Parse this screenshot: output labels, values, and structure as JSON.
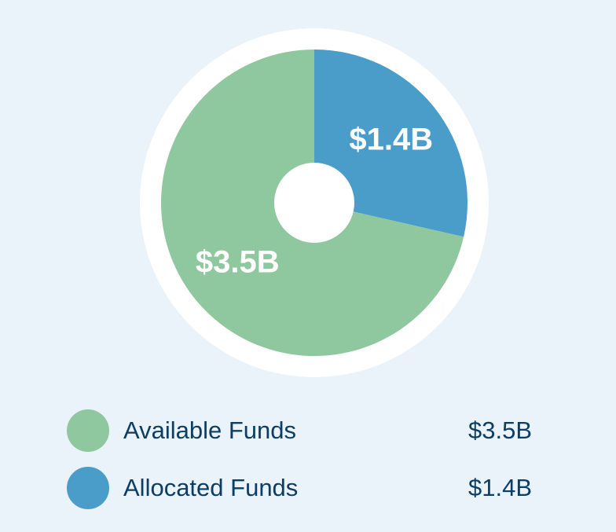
{
  "chart_data": {
    "type": "pie",
    "categories": [
      "Available Funds",
      "Allocated Funds"
    ],
    "values": [
      3.5,
      1.4
    ],
    "value_labels": [
      "$3.5B",
      "$1.4B"
    ],
    "colors": [
      "#8fc79f",
      "#4a9cc9"
    ]
  }
}
